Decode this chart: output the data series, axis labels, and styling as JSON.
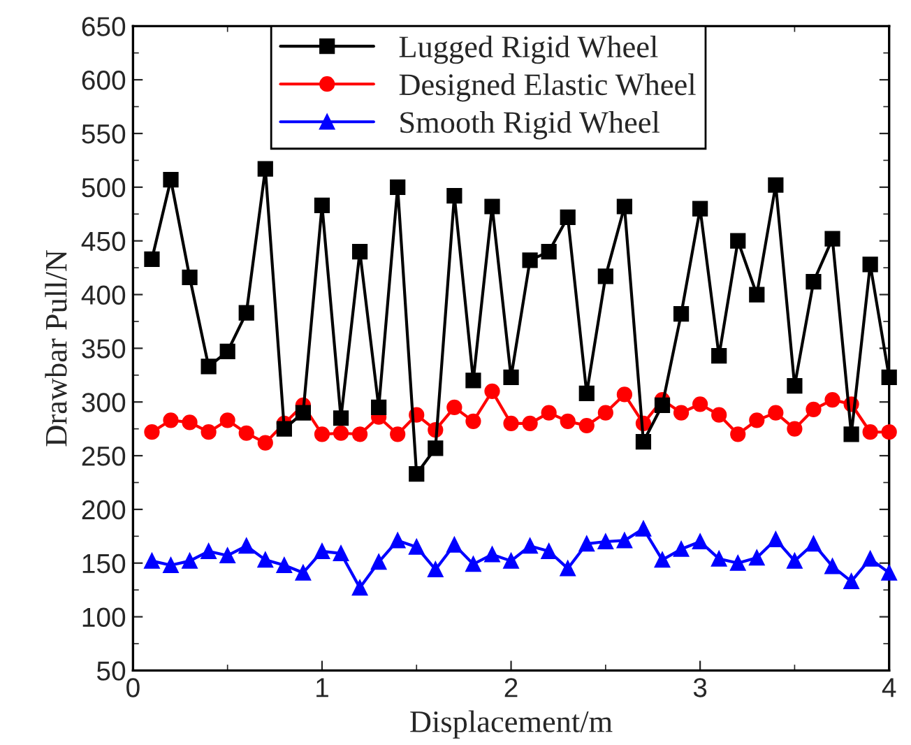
{
  "chart_data": {
    "type": "line",
    "xlabel": "Displacement/m",
    "ylabel": "Drawbar Pull/N",
    "x": [
      0.1,
      0.2,
      0.3,
      0.4,
      0.5,
      0.6,
      0.7,
      0.8,
      0.9,
      1.0,
      1.1,
      1.2,
      1.3,
      1.4,
      1.5,
      1.6,
      1.7,
      1.8,
      1.9,
      2.0,
      2.1,
      2.2,
      2.3,
      2.4,
      2.5,
      2.6,
      2.7,
      2.8,
      2.9,
      3.0,
      3.1,
      3.2,
      3.3,
      3.4,
      3.5,
      3.6,
      3.7,
      3.8,
      3.9,
      4.0
    ],
    "series": [
      {
        "name": "Lugged Rigid Wheel",
        "color": "#000000",
        "marker": "square",
        "values": [
          433,
          507,
          416,
          333,
          347,
          383,
          517,
          275,
          290,
          483,
          285,
          440,
          295,
          500,
          233,
          257,
          492,
          320,
          482,
          323,
          432,
          440,
          472,
          308,
          417,
          482,
          263,
          297,
          382,
          480,
          343,
          450,
          400,
          502,
          315,
          412,
          452,
          270,
          428,
          323
        ]
      },
      {
        "name": "Designed Elastic Wheel",
        "color": "#ff0000",
        "marker": "circle",
        "values": [
          272,
          283,
          281,
          272,
          283,
          271,
          262,
          280,
          297,
          270,
          271,
          270,
          286,
          270,
          288,
          274,
          295,
          282,
          310,
          280,
          280,
          290,
          282,
          278,
          290,
          307,
          280,
          302,
          290,
          298,
          288,
          270,
          283,
          290,
          275,
          293,
          302,
          298,
          272,
          272
        ]
      },
      {
        "name": "Smooth Rigid Wheel",
        "color": "#0000ff",
        "marker": "triangle",
        "values": [
          152,
          148,
          152,
          161,
          157,
          166,
          153,
          148,
          141,
          161,
          159,
          127,
          151,
          171,
          165,
          144,
          167,
          149,
          158,
          152,
          166,
          161,
          145,
          168,
          170,
          171,
          182,
          153,
          163,
          170,
          154,
          150,
          155,
          172,
          152,
          168,
          147,
          133,
          154,
          141
        ]
      }
    ],
    "xlim": [
      0,
      4
    ],
    "xticks": [
      0,
      1,
      2,
      3,
      4
    ],
    "ylim": [
      50,
      650
    ],
    "yticks": [
      50,
      100,
      150,
      200,
      250,
      300,
      350,
      400,
      450,
      500,
      550,
      600,
      650
    ],
    "legend": "top",
    "grid": false,
    "line_style": "solid"
  }
}
